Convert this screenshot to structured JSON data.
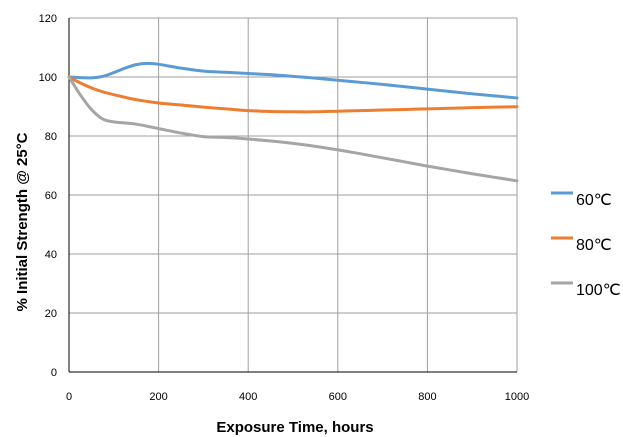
{
  "chart_data": {
    "type": "line",
    "xlabel": "Exposure Time, hours",
    "ylabel": "% Initial Strength @ 25°C",
    "xlim": [
      0,
      1000
    ],
    "ylim": [
      0,
      120
    ],
    "x_ticks": [
      "0",
      "200",
      "400",
      "600",
      "800",
      "1000"
    ],
    "y_ticks": [
      "0",
      "20",
      "40",
      "60",
      "80",
      "100",
      "120"
    ],
    "grid": true,
    "legend_position": "right",
    "series": [
      {
        "name": "60℃",
        "color": "#5b9bd5",
        "x": [
          0,
          25,
          50,
          75,
          100,
          125,
          150,
          175,
          200,
          250,
          300,
          350,
          400,
          450,
          500,
          550,
          600,
          650,
          700,
          750,
          800,
          850,
          900,
          950,
          1000
        ],
        "y": [
          100,
          99.8,
          99.7,
          100.2,
          101.5,
          103,
          104.2,
          104.6,
          104.3,
          103,
          102,
          101.6,
          101.2,
          100.8,
          100.2,
          99.6,
          98.9,
          98.2,
          97.5,
          96.7,
          95.9,
          95.1,
          94.3,
          93.6,
          92.9
        ]
      },
      {
        "name": "80℃",
        "color": "#ed7d31",
        "x": [
          0,
          25,
          50,
          75,
          100,
          150,
          200,
          250,
          300,
          350,
          400,
          450,
          500,
          550,
          600,
          650,
          700,
          750,
          800,
          850,
          900,
          950,
          1000
        ],
        "y": [
          100,
          98,
          96.3,
          95,
          94,
          92.3,
          91.2,
          90.5,
          89.8,
          89.2,
          88.6,
          88.3,
          88.2,
          88.2,
          88.4,
          88.6,
          88.8,
          89,
          89.2,
          89.4,
          89.6,
          89.8,
          89.9
        ]
      },
      {
        "name": "100℃",
        "color": "#a5a5a5",
        "x": [
          0,
          25,
          50,
          75,
          100,
          150,
          200,
          250,
          300,
          350,
          400,
          450,
          500,
          550,
          600,
          650,
          700,
          750,
          800,
          850,
          900,
          950,
          1000
        ],
        "y": [
          100,
          94,
          89,
          85.8,
          84.8,
          84,
          82.5,
          81,
          79.8,
          79.5,
          79,
          78.3,
          77.5,
          76.5,
          75.3,
          74,
          72.6,
          71.2,
          69.8,
          68.5,
          67.2,
          66,
          64.8
        ]
      }
    ]
  }
}
